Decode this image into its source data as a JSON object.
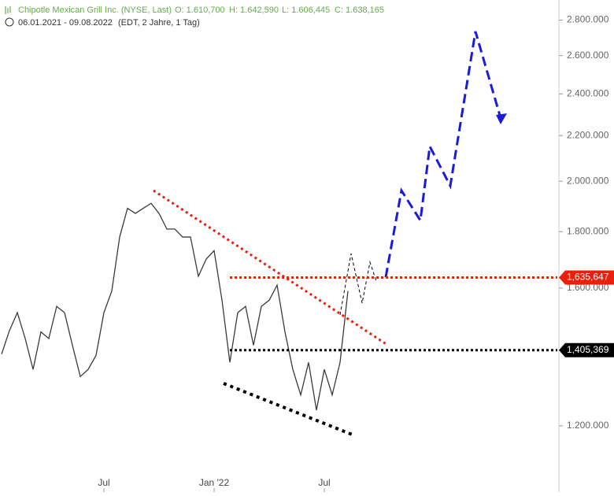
{
  "header": {
    "title": "Chipotle Mexican Grill Inc. (NYSE, Last)",
    "open": "O: 1.610,700",
    "high": "H: 1.642,590",
    "low": "L: 1.606,445",
    "close": "C: 1.638,165",
    "range": "06.01.2021 - 09.08.2022",
    "info": "(EDT, 2 Jahre, 1 Tag)"
  },
  "chart_data": {
    "type": "line",
    "log_scale": true,
    "grid": false,
    "categories": [
      null,
      null,
      null,
      null,
      null,
      null,
      null,
      null,
      null,
      null,
      null,
      null,
      null,
      "Jul",
      null,
      null,
      null,
      null,
      null,
      null,
      null,
      null,
      null,
      null,
      null,
      null,
      null,
      "Jan '22",
      null,
      null,
      null,
      null,
      null,
      null,
      null,
      null,
      null,
      null,
      null,
      null,
      null,
      "Jul",
      null,
      null,
      null
    ],
    "series": [
      {
        "color": "#3a3a3a",
        "values": [
          1394000,
          1464000,
          1520000,
          1440000,
          1350000,
          1460000,
          1440000,
          1540000,
          1520000,
          1420000,
          1330000,
          1350000,
          1390000,
          1520000,
          1590000,
          1780000,
          1890000,
          1870000,
          1890000,
          1910000,
          1870000,
          1810000,
          1810000,
          1780000,
          1780000,
          1640000,
          1700000,
          1730000,
          1560000,
          1370000,
          1520000,
          1540000,
          1420000,
          1540000,
          1560000,
          1610000,
          1460000,
          1350000,
          1280000,
          1370000,
          1240000,
          1350000,
          1280000,
          1370000,
          1590000
        ]
      }
    ],
    "ylim": [
      1045000,
      2920000
    ],
    "yticks": [
      {
        "value": 1200000,
        "label": "1.200.000"
      },
      {
        "value": 1600000,
        "label": "1.600.000"
      },
      {
        "value": 1800000,
        "label": "1.800.000"
      },
      {
        "value": 2000000,
        "label": "2.000.000"
      },
      {
        "value": 2200000,
        "label": "2.200.000"
      },
      {
        "value": 2400000,
        "label": "2.400.000"
      },
      {
        "value": 2600000,
        "label": "2.600.000"
      },
      {
        "value": 2800000,
        "label": "2.800.000"
      }
    ],
    "levels": [
      {
        "value": 1635647,
        "label": "1,635,647",
        "color": "#e8200c"
      },
      {
        "value": 1405369,
        "label": "1,405,369",
        "color": "#000000"
      }
    ]
  }
}
